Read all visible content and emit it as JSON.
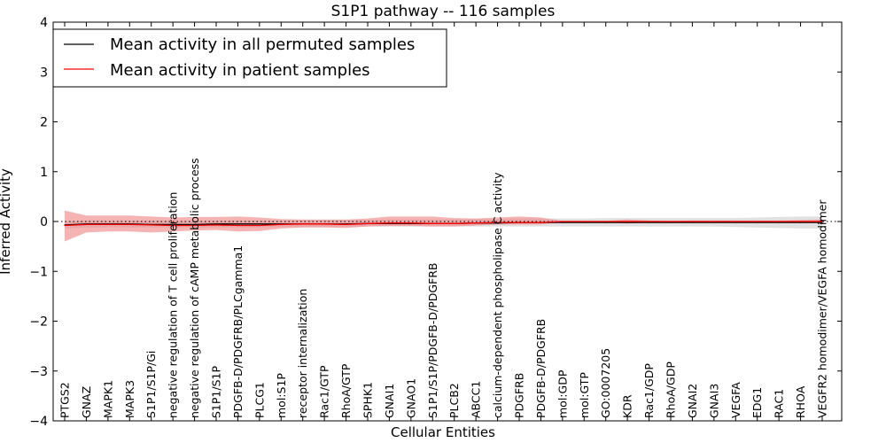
{
  "chart_data": {
    "type": "line",
    "title": "S1P1 pathway -- 116 samples",
    "xlabel": "Cellular Entities",
    "ylabel": "Inferred Activity",
    "ylim": [
      -4,
      4
    ],
    "yticks": [
      -4,
      -3,
      -2,
      -1,
      0,
      1,
      2,
      3,
      4
    ],
    "ytick_labels": [
      "−4",
      "−3",
      "−2",
      "−1",
      "0",
      "1",
      "2",
      "3",
      "4"
    ],
    "grid": false,
    "legend_position": "top-left",
    "categories": [
      "PTGS2",
      "GNAZ",
      "MAPK1",
      "MAPK3",
      "S1P1/S1P/Gi",
      "negative regulation of T cell proliferation",
      "negative regulation of cAMP metabolic process",
      "S1P1/S1P",
      "PDGFB-D/PDGFRB/PLCgamma1",
      "PLCG1",
      "mol:S1P",
      "receptor internalization",
      "Rac1/GTP",
      "RhoA/GTP",
      "SPHK1",
      "GNAI1",
      "GNAO1",
      "S1P1/S1P/PDGFB-D/PDGFRB",
      "PLCB2",
      "ABCC1",
      "calcium-dependent phospholipase C activity",
      "PDGFRB",
      "PDGFB-D/PDGFRB",
      "mol:GDP",
      "mol:GTP",
      "GO:0007205",
      "KDR",
      "Rac1/GDP",
      "RhoA/GDP",
      "GNAI2",
      "GNAI3",
      "VEGFA",
      "EDG1",
      "RAC1",
      "RHOA",
      "VEGFR2 homodimer/VEGFA homodimer"
    ],
    "series": [
      {
        "name": "Mean activity in all permuted samples",
        "color": "#000000",
        "band_color": "#c8c8c8",
        "values": [
          -0.07,
          -0.05,
          -0.05,
          -0.05,
          -0.06,
          -0.06,
          -0.06,
          -0.05,
          -0.05,
          -0.05,
          -0.05,
          -0.05,
          -0.05,
          -0.05,
          -0.04,
          -0.04,
          -0.04,
          -0.04,
          -0.04,
          -0.03,
          -0.03,
          -0.02,
          -0.02,
          -0.02,
          -0.02,
          -0.02,
          -0.02,
          -0.02,
          -0.02,
          -0.02,
          -0.02,
          -0.02,
          -0.02,
          -0.02,
          -0.02,
          -0.02
        ],
        "lower": [
          -0.14,
          -0.12,
          -0.12,
          -0.12,
          -0.12,
          -0.12,
          -0.12,
          -0.12,
          -0.12,
          -0.12,
          -0.11,
          -0.11,
          -0.11,
          -0.11,
          -0.1,
          -0.1,
          -0.1,
          -0.1,
          -0.1,
          -0.1,
          -0.1,
          -0.1,
          -0.1,
          -0.1,
          -0.1,
          -0.1,
          -0.1,
          -0.1,
          -0.1,
          -0.1,
          -0.1,
          -0.11,
          -0.12,
          -0.13,
          -0.14,
          -0.14
        ],
        "upper": [
          0,
          0.02,
          0.02,
          0.02,
          0.02,
          0.02,
          0.02,
          0.02,
          0.02,
          0.02,
          0.02,
          0.03,
          0.03,
          0.03,
          0.03,
          0.04,
          0.04,
          0.04,
          0.04,
          0.05,
          0.05,
          0.06,
          0.06,
          0.06,
          0.06,
          0.07,
          0.07,
          0.07,
          0.07,
          0.07,
          0.07,
          0.07,
          0.08,
          0.09,
          0.1,
          0.1
        ]
      },
      {
        "name": "Mean activity in patient samples",
        "color": "#ff0000",
        "band_color": "#f08080",
        "values": [
          -0.08,
          -0.06,
          -0.06,
          -0.06,
          -0.07,
          -0.08,
          -0.08,
          -0.07,
          -0.08,
          -0.08,
          -0.06,
          -0.05,
          -0.05,
          -0.06,
          -0.04,
          -0.03,
          -0.03,
          -0.04,
          -0.04,
          -0.03,
          -0.02,
          -0.02,
          -0.02,
          0.0,
          0.0,
          0.0,
          0.0,
          0.0,
          0.0,
          0.0,
          0.0,
          0.0,
          0.0,
          0.0,
          0.0,
          0.0
        ],
        "lower": [
          -0.4,
          -0.22,
          -0.2,
          -0.2,
          -0.22,
          -0.2,
          -0.18,
          -0.17,
          -0.2,
          -0.19,
          -0.14,
          -0.12,
          -0.12,
          -0.13,
          -0.1,
          -0.09,
          -0.09,
          -0.1,
          -0.1,
          -0.08,
          -0.06,
          -0.06,
          -0.06,
          -0.01,
          0.0,
          0.0,
          -0.04,
          -0.02,
          -0.02,
          -0.02,
          -0.02,
          -0.01,
          -0.01,
          -0.01,
          -0.01,
          -0.01
        ],
        "upper": [
          0.22,
          0.12,
          0.12,
          0.12,
          0.1,
          0.08,
          0.09,
          0.09,
          0.1,
          0.08,
          0.05,
          0.04,
          0.04,
          0.04,
          0.06,
          0.1,
          0.1,
          0.1,
          0.07,
          0.06,
          0.08,
          0.1,
          0.08,
          0.01,
          0.01,
          0.01,
          0.04,
          0.02,
          0.01,
          0.02,
          0.02,
          0.02,
          0.02,
          0.02,
          0.03,
          0.04
        ]
      }
    ],
    "reference_line": {
      "value": 0,
      "style": "dotted"
    }
  }
}
